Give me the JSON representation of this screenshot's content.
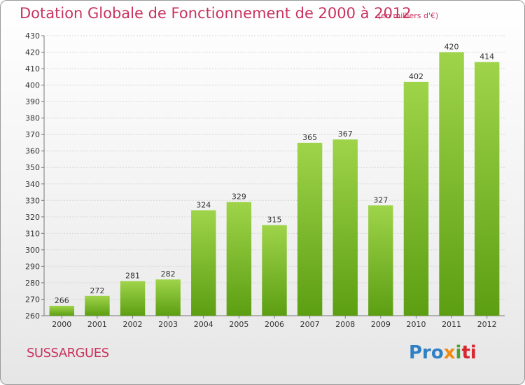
{
  "title": "Dotation Globale de Fonctionnement de 2000 à 2012",
  "subtitle": "(en milliers d'€)",
  "commune": "SUSSARGUES",
  "logo": {
    "part1": "Pro",
    "part2": "x",
    "part3": "i",
    "part4": "ti"
  },
  "colors": {
    "bar_top": "#9fd44a",
    "bar_bottom": "#5c9e12",
    "title": "#c8325f"
  },
  "chart_data": {
    "type": "bar",
    "title": "Dotation Globale de Fonctionnement de 2000 à 2012",
    "subtitle": "(en milliers d'€)",
    "xlabel": "",
    "ylabel": "",
    "categories": [
      "2000",
      "2001",
      "2002",
      "2003",
      "2004",
      "2005",
      "2006",
      "2007",
      "2008",
      "2009",
      "2010",
      "2011",
      "2012"
    ],
    "values": [
      266,
      272,
      281,
      282,
      324,
      329,
      315,
      365,
      367,
      327,
      402,
      420,
      414
    ],
    "ylim": [
      260,
      430
    ],
    "yticks": [
      260,
      270,
      280,
      290,
      300,
      310,
      320,
      330,
      340,
      350,
      360,
      370,
      380,
      390,
      400,
      410,
      420,
      430
    ],
    "grid": true,
    "legend": "none"
  }
}
